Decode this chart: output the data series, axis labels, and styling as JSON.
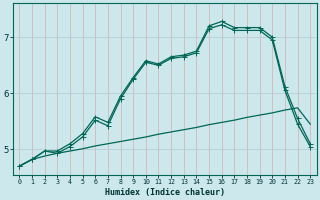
{
  "xlabel": "Humidex (Indice chaleur)",
  "bg_color": "#cce8ed",
  "grid_color": "#b0d8de",
  "line_color": "#006655",
  "xlim": [
    -0.5,
    23.5
  ],
  "ylim": [
    4.55,
    7.6
  ],
  "yticks": [
    5,
    6,
    7
  ],
  "xticks": [
    0,
    1,
    2,
    3,
    4,
    5,
    6,
    7,
    8,
    9,
    10,
    11,
    12,
    13,
    14,
    15,
    16,
    17,
    18,
    19,
    20,
    21,
    22,
    23
  ],
  "series_bottom_x": [
    0,
    1,
    2,
    3,
    4,
    5,
    6,
    7,
    8,
    9,
    10,
    11,
    12,
    13,
    14,
    15,
    16,
    17,
    18,
    19,
    20,
    21,
    22,
    23
  ],
  "series_bottom_y": [
    4.7,
    4.82,
    4.88,
    4.93,
    4.97,
    5.01,
    5.06,
    5.1,
    5.14,
    5.18,
    5.22,
    5.27,
    5.31,
    5.35,
    5.39,
    5.44,
    5.48,
    5.52,
    5.57,
    5.61,
    5.65,
    5.7,
    5.74,
    5.45
  ],
  "series_mid_x": [
    0,
    1,
    2,
    3,
    4,
    5,
    6,
    7,
    8,
    9,
    10,
    11,
    12,
    13,
    14,
    15,
    16,
    17,
    18,
    19,
    20,
    21,
    22,
    23
  ],
  "series_mid_y": [
    4.7,
    4.82,
    4.97,
    4.93,
    5.05,
    5.22,
    5.52,
    5.42,
    5.9,
    6.25,
    6.55,
    6.5,
    6.62,
    6.65,
    6.72,
    7.15,
    7.22,
    7.12,
    7.12,
    7.12,
    6.95,
    6.05,
    5.45,
    5.05
  ],
  "series_top_x": [
    0,
    1,
    2,
    3,
    4,
    5,
    6,
    7,
    8,
    9,
    10,
    11,
    12,
    13,
    14,
    15,
    16,
    17,
    18,
    19,
    20,
    21,
    22,
    23
  ],
  "series_top_y": [
    4.7,
    4.82,
    4.97,
    4.97,
    5.1,
    5.28,
    5.58,
    5.48,
    5.95,
    6.28,
    6.58,
    6.52,
    6.65,
    6.68,
    6.75,
    7.2,
    7.28,
    7.17,
    7.17,
    7.17,
    7.0,
    6.12,
    5.55,
    5.1
  ]
}
